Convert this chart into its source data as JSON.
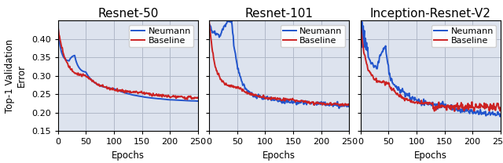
{
  "titles": [
    "Resnet-50",
    "Resnet-101",
    "Inception-Resnet-V2"
  ],
  "ylabel": "Top-1 Validation\nError",
  "xlabel": "Epochs",
  "xlim": [
    0,
    250
  ],
  "ylim": [
    0.15,
    0.45
  ],
  "yticks": [
    0.15,
    0.2,
    0.25,
    0.3,
    0.35,
    0.4
  ],
  "xticks": [
    0,
    50,
    100,
    150,
    200,
    250
  ],
  "neumann_color": "#2255cc",
  "baseline_color": "#cc2222",
  "linewidth": 1.4,
  "title_fontsize": 11,
  "label_fontsize": 8.5,
  "tick_fontsize": 8,
  "legend_fontsize": 8,
  "grid_color": "#b0b8c8",
  "background_color": "#dde3ee"
}
